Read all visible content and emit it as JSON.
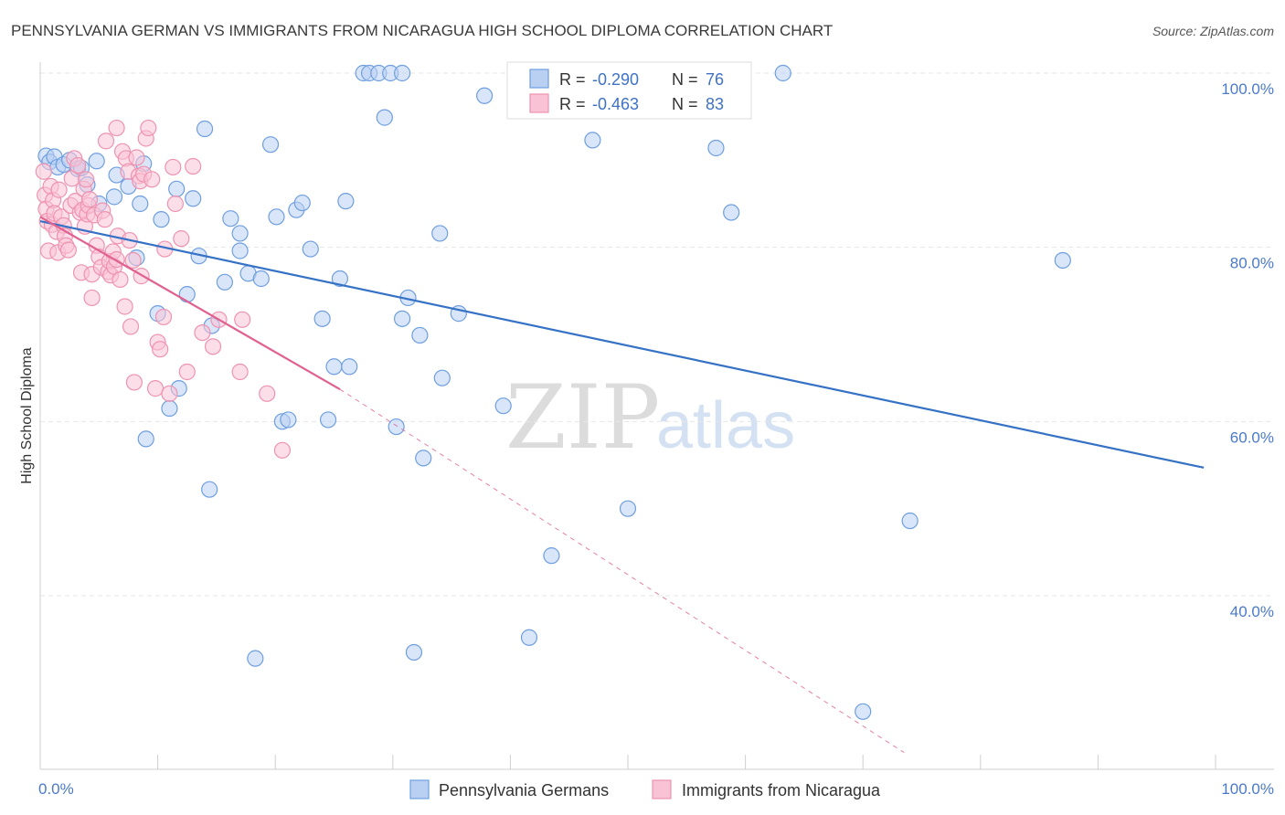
{
  "chart_data": {
    "type": "scatter",
    "title": "PENNSYLVANIA GERMAN VS IMMIGRANTS FROM NICARAGUA HIGH SCHOOL DIPLOMA CORRELATION CHART",
    "source": "Source: ZipAtlas.com",
    "xlabel": "",
    "ylabel": "High School Diploma",
    "xlim": [
      0,
      100
    ],
    "ylim": [
      22,
      104
    ],
    "x_tick_labels": {
      "left": "0.0%",
      "right": "100.0%"
    },
    "y_ticks": [
      {
        "value": 100,
        "label": "100.0%"
      },
      {
        "value": 80,
        "label": "80.0%"
      },
      {
        "value": 60,
        "label": "60.0%"
      },
      {
        "value": 40,
        "label": "40.0%"
      }
    ],
    "watermark": {
      "zip": "ZIP",
      "atlas": "atlas"
    },
    "legend_stats": [
      {
        "r_label": "R =",
        "r_value": "-0.290",
        "n_label": "N =",
        "n_value": "76"
      },
      {
        "r_label": "R =",
        "r_value": "-0.463",
        "n_label": "N =",
        "n_value": "83"
      }
    ],
    "series": [
      {
        "name": "Pennsylvania Germans",
        "color": "#6f9fe0",
        "fill": "#b9d0f2",
        "line_color": "#3572c6",
        "trend": {
          "x": [
            0,
            99
          ],
          "y": [
            83.0,
            54.7
          ]
        },
        "points": [
          [
            0.5,
            90.5
          ],
          [
            0.8,
            89.8
          ],
          [
            1.2,
            90.4
          ],
          [
            1.5,
            89.2
          ],
          [
            2.0,
            89.5
          ],
          [
            2.5,
            90.0
          ],
          [
            3.2,
            89.0
          ],
          [
            3.5,
            89.1
          ],
          [
            4.0,
            87.2
          ],
          [
            4.8,
            89.9
          ],
          [
            5.0,
            85.0
          ],
          [
            6.5,
            88.3
          ],
          [
            6.3,
            85.8
          ],
          [
            7.5,
            87.0
          ],
          [
            8.2,
            78.8
          ],
          [
            8.5,
            85.0
          ],
          [
            8.8,
            89.6
          ],
          [
            10.3,
            83.2
          ],
          [
            10.0,
            72.4
          ],
          [
            9.0,
            58.0
          ],
          [
            11.0,
            61.5
          ],
          [
            11.8,
            63.8
          ],
          [
            11.6,
            86.7
          ],
          [
            12.5,
            74.6
          ],
          [
            13.0,
            85.6
          ],
          [
            13.5,
            79.0
          ],
          [
            14.0,
            93.6
          ],
          [
            14.6,
            71.0
          ],
          [
            14.4,
            52.2
          ],
          [
            15.7,
            76.0
          ],
          [
            16.2,
            83.3
          ],
          [
            17.0,
            81.6
          ],
          [
            17.0,
            79.6
          ],
          [
            17.7,
            77.0
          ],
          [
            18.3,
            32.8
          ],
          [
            18.8,
            76.4
          ],
          [
            19.6,
            91.8
          ],
          [
            20.1,
            83.5
          ],
          [
            20.6,
            60.0
          ],
          [
            21.1,
            60.2
          ],
          [
            21.8,
            84.3
          ],
          [
            22.3,
            85.1
          ],
          [
            23.0,
            79.8
          ],
          [
            24.0,
            71.8
          ],
          [
            24.5,
            60.2
          ],
          [
            25.0,
            66.3
          ],
          [
            25.5,
            76.4
          ],
          [
            26.0,
            85.3
          ],
          [
            26.3,
            66.3
          ],
          [
            27.5,
            100.0
          ],
          [
            28.0,
            100.0
          ],
          [
            28.8,
            100.0
          ],
          [
            29.3,
            94.9
          ],
          [
            29.8,
            100.0
          ],
          [
            30.3,
            59.4
          ],
          [
            30.8,
            100.0
          ],
          [
            30.8,
            71.8
          ],
          [
            31.3,
            74.2
          ],
          [
            31.8,
            33.5
          ],
          [
            32.3,
            69.9
          ],
          [
            32.6,
            55.8
          ],
          [
            34.0,
            81.6
          ],
          [
            34.2,
            65.0
          ],
          [
            35.6,
            72.4
          ],
          [
            37.8,
            97.4
          ],
          [
            39.4,
            61.8
          ],
          [
            41.6,
            35.2
          ],
          [
            43.5,
            44.6
          ],
          [
            47.0,
            92.3
          ],
          [
            50.0,
            50.0
          ],
          [
            57.5,
            91.4
          ],
          [
            58.8,
            84.0
          ],
          [
            63.2,
            100.0
          ],
          [
            70.0,
            26.7
          ],
          [
            74.0,
            48.6
          ],
          [
            87.0,
            78.5
          ]
        ]
      },
      {
        "name": "Immigrants from Nicaragua",
        "color": "#ee93b0",
        "fill": "#f9c3d5",
        "line_color": "#e0608f",
        "trend": {
          "x": [
            0,
            25.5
          ],
          "y": [
            83.5,
            63.7
          ]
        },
        "trend_dashed": {
          "x": [
            25.5,
            73.5
          ],
          "y": [
            63.7,
            22.0
          ]
        },
        "points": [
          [
            0.3,
            88.7
          ],
          [
            0.4,
            86.0
          ],
          [
            0.5,
            84.4
          ],
          [
            0.6,
            83.0
          ],
          [
            0.7,
            79.6
          ],
          [
            0.9,
            87.0
          ],
          [
            1.0,
            82.6
          ],
          [
            1.1,
            85.4
          ],
          [
            1.2,
            83.9
          ],
          [
            1.4,
            81.8
          ],
          [
            1.5,
            79.4
          ],
          [
            1.6,
            86.6
          ],
          [
            1.8,
            83.5
          ],
          [
            2.0,
            82.5
          ],
          [
            2.1,
            81.3
          ],
          [
            2.2,
            80.2
          ],
          [
            2.4,
            79.7
          ],
          [
            2.6,
            84.8
          ],
          [
            2.7,
            87.9
          ],
          [
            2.9,
            90.2
          ],
          [
            3.0,
            85.3
          ],
          [
            3.2,
            89.4
          ],
          [
            3.4,
            84.0
          ],
          [
            3.5,
            77.1
          ],
          [
            3.6,
            84.3
          ],
          [
            3.7,
            86.7
          ],
          [
            3.8,
            82.4
          ],
          [
            3.9,
            87.8
          ],
          [
            4.0,
            83.8
          ],
          [
            4.1,
            84.8
          ],
          [
            4.2,
            85.5
          ],
          [
            4.4,
            76.9
          ],
          [
            4.4,
            74.2
          ],
          [
            4.6,
            83.7
          ],
          [
            4.8,
            80.2
          ],
          [
            5.0,
            78.9
          ],
          [
            5.2,
            77.7
          ],
          [
            5.3,
            84.2
          ],
          [
            5.5,
            83.2
          ],
          [
            5.6,
            92.2
          ],
          [
            5.8,
            77.2
          ],
          [
            5.9,
            78.4
          ],
          [
            6.0,
            76.8
          ],
          [
            6.2,
            79.5
          ],
          [
            6.3,
            77.8
          ],
          [
            6.5,
            78.6
          ],
          [
            6.5,
            93.7
          ],
          [
            6.6,
            81.3
          ],
          [
            6.8,
            76.3
          ],
          [
            7.0,
            91.0
          ],
          [
            7.2,
            73.2
          ],
          [
            7.3,
            90.2
          ],
          [
            7.5,
            88.7
          ],
          [
            7.6,
            80.8
          ],
          [
            7.7,
            70.9
          ],
          [
            7.9,
            78.5
          ],
          [
            8.0,
            64.5
          ],
          [
            8.2,
            90.3
          ],
          [
            8.4,
            88.2
          ],
          [
            8.5,
            87.6
          ],
          [
            8.6,
            76.7
          ],
          [
            8.8,
            88.4
          ],
          [
            9.0,
            92.5
          ],
          [
            9.2,
            93.7
          ],
          [
            9.5,
            87.8
          ],
          [
            9.8,
            63.8
          ],
          [
            10.0,
            69.1
          ],
          [
            10.2,
            68.3
          ],
          [
            10.5,
            72.0
          ],
          [
            10.6,
            79.8
          ],
          [
            11.0,
            63.2
          ],
          [
            11.3,
            89.2
          ],
          [
            12.0,
            81.0
          ],
          [
            12.5,
            65.7
          ],
          [
            13.0,
            89.3
          ],
          [
            13.8,
            70.2
          ],
          [
            14.7,
            68.6
          ],
          [
            15.2,
            71.7
          ],
          [
            17.0,
            65.7
          ],
          [
            17.2,
            71.7
          ],
          [
            19.3,
            63.2
          ],
          [
            20.6,
            56.7
          ],
          [
            11.5,
            85.0
          ]
        ]
      }
    ]
  }
}
